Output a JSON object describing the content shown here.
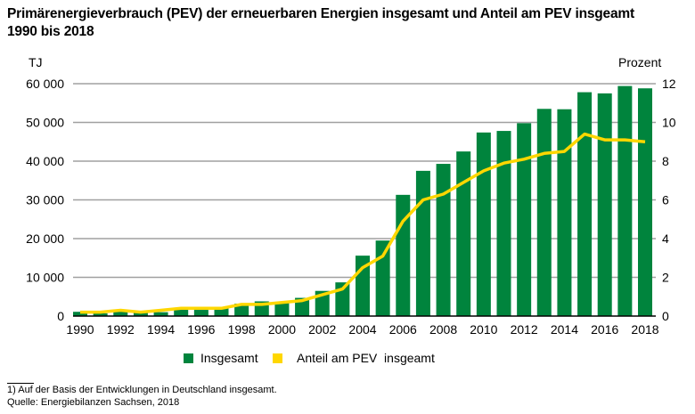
{
  "title_line1": "Primärenergieverbrauch (PEV) der erneuerbaren Energien insgesamt und Anteil am PEV insgeamt",
  "title_line2": "1990 bis 2018",
  "footnote": "1) Auf der Basis der Entwicklungen in Deutschland insgesamt.",
  "source": "Quelle: Energiebilanzen Sachsen, 2018",
  "colors": {
    "bars": "#00843d",
    "line": "#ffd700",
    "grid": "#a0a0a0"
  },
  "chart_data": {
    "type": "bar+line",
    "ylabel_left": "TJ",
    "ylabel_right": "Prozent",
    "ylim_left": [
      0,
      60000
    ],
    "ylim_right": [
      0,
      12
    ],
    "yticks_left": [
      "0",
      "10 000",
      "20 000",
      "30 000",
      "40 000",
      "50 000",
      "60 000"
    ],
    "yticks_right": [
      "0",
      "2",
      "4",
      "6",
      "8",
      "10",
      "12"
    ],
    "xticks": [
      "1990",
      "1992",
      "1994",
      "1996",
      "1998",
      "2000",
      "2002",
      "2004",
      "2006",
      "2008",
      "2010",
      "2012",
      "2014",
      "2016",
      "2018"
    ],
    "grid": true,
    "legend_position": "bottom",
    "x": [
      1990,
      1991,
      1992,
      1993,
      1994,
      1995,
      1996,
      1997,
      1998,
      1999,
      2000,
      2001,
      2002,
      2003,
      2004,
      2005,
      2006,
      2007,
      2008,
      2009,
      2010,
      2011,
      2012,
      2013,
      2014,
      2015,
      2016,
      2017,
      2018
    ],
    "series": [
      {
        "name": "Insgesamt",
        "type": "bar",
        "axis": "left",
        "values": [
          1100,
          700,
          1700,
          1100,
          1000,
          2000,
          1600,
          2200,
          3200,
          3800,
          3600,
          4700,
          6500,
          8700,
          15600,
          19500,
          31300,
          37500,
          39300,
          42500,
          47400,
          47800,
          49800,
          53500,
          53400,
          57800,
          57500,
          59400,
          58800
        ]
      },
      {
        "name": "Anteil am PEV  insgeamt",
        "type": "line",
        "axis": "right",
        "values": [
          0.2,
          0.2,
          0.3,
          0.2,
          0.3,
          0.4,
          0.4,
          0.4,
          0.6,
          0.6,
          0.7,
          0.8,
          1.1,
          1.4,
          2.5,
          3.1,
          4.9,
          6.0,
          6.3,
          6.9,
          7.5,
          7.9,
          8.1,
          8.4,
          8.5,
          9.4,
          9.1,
          9.1,
          9.0
        ]
      }
    ]
  }
}
